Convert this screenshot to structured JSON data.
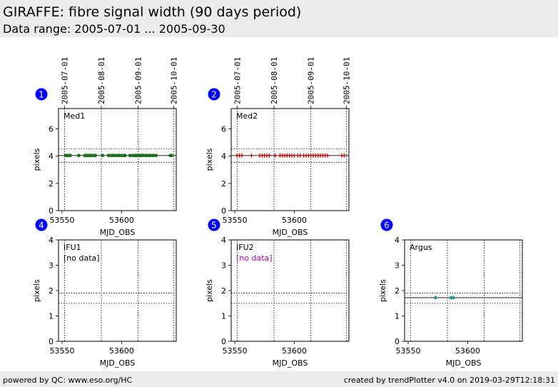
{
  "header": {
    "title": "GIRAFFE: fibre signal width (90 days period)",
    "subtitle": "Data range: 2005-07-01 ... 2005-09-30"
  },
  "footer": {
    "left": "powered by QC: www.eso.org/HC",
    "right": "created by trendPlotter v4.0 on 2019-03-29T12:18:31"
  },
  "colors": {
    "badge": "#0000ff",
    "med1_marker": "#1f6f1f",
    "med2_marker": "#cc0000",
    "argus_marker": "#2a9a9a",
    "no_data_ifu2": "#b000b0"
  },
  "chart_data": [
    {
      "id": 1,
      "label": "Med1",
      "type": "scatter",
      "marker": "circle",
      "color": "#1f6f1f",
      "xlabel": "MJD_OBS",
      "ylabel": "pixels",
      "xlim": [
        53547,
        53646
      ],
      "ylim": [
        0,
        7.5
      ],
      "xticks": [
        53550,
        53600
      ],
      "yticks": [
        0,
        2,
        4,
        6
      ],
      "date_ticks": [
        {
          "label": "2005-07-01",
          "mjd": 53552
        },
        {
          "label": "2005-08-01",
          "mjd": 53583
        },
        {
          "label": "2005-09-01",
          "mjd": 53614
        },
        {
          "label": "2005-10-01",
          "mjd": 53644
        }
      ],
      "hlines": {
        "solid": [
          4.05
        ],
        "dotted": [
          4.55,
          3.55
        ]
      },
      "points": {
        "x": [
          53553,
          53554,
          53555,
          53556,
          53557,
          53564,
          53569,
          53570,
          53571,
          53572,
          53573,
          53574,
          53575,
          53577,
          53578,
          53584,
          53589,
          53590,
          53592,
          53593,
          53595,
          53597,
          53598,
          53600,
          53602,
          53603,
          53607,
          53609,
          53611,
          53612,
          53613,
          53615,
          53616,
          53617,
          53618,
          53620,
          53621,
          53623,
          53624,
          53626,
          53627,
          53629,
          53641,
          53642
        ],
        "y": [
          4.05,
          4.05,
          4.05,
          4.05,
          4.05,
          4.05,
          4.05,
          4.05,
          4.05,
          4.05,
          4.05,
          4.05,
          4.05,
          4.05,
          4.05,
          4.05,
          4.05,
          4.05,
          4.05,
          4.05,
          4.05,
          4.05,
          4.05,
          4.05,
          4.05,
          4.05,
          4.05,
          4.05,
          4.05,
          4.05,
          4.05,
          4.05,
          4.05,
          4.05,
          4.05,
          4.05,
          4.05,
          4.05,
          4.05,
          4.05,
          4.05,
          4.05,
          4.05,
          4.05
        ]
      }
    },
    {
      "id": 2,
      "label": "Med2",
      "type": "scatter",
      "marker": "plus",
      "color": "#cc0000",
      "xlabel": "MJD_OBS",
      "ylabel": "pixels",
      "xlim": [
        53547,
        53646
      ],
      "ylim": [
        0,
        7.5
      ],
      "xticks": [
        53550,
        53600
      ],
      "yticks": [
        0,
        2,
        4,
        6
      ],
      "date_ticks": [
        {
          "label": "2005-07-01",
          "mjd": 53552
        },
        {
          "label": "2005-08-01",
          "mjd": 53583
        },
        {
          "label": "2005-09-01",
          "mjd": 53614
        },
        {
          "label": "2005-10-01",
          "mjd": 53644
        }
      ],
      "hlines": {
        "solid": [
          4.05
        ],
        "dotted": [
          4.55,
          3.55
        ]
      },
      "points": {
        "x": [
          53552,
          53554,
          53556,
          53564,
          53571,
          53573,
          53575,
          53577,
          53579,
          53584,
          53588,
          53590,
          53592,
          53594,
          53596,
          53598,
          53600,
          53603,
          53605,
          53608,
          53610,
          53612,
          53614,
          53616,
          53618,
          53620,
          53622,
          53624,
          53626,
          53628,
          53640,
          53642
        ],
        "y": [
          4.05,
          4.05,
          4.05,
          4.05,
          4.05,
          4.05,
          4.05,
          4.05,
          4.05,
          4.05,
          4.05,
          4.05,
          4.05,
          4.05,
          4.05,
          4.05,
          4.05,
          4.05,
          4.05,
          4.05,
          4.05,
          4.05,
          4.05,
          4.05,
          4.05,
          4.05,
          4.05,
          4.05,
          4.05,
          4.05,
          4.05,
          4.05
        ]
      }
    },
    {
      "id": 4,
      "label": "IFU1",
      "type": "scatter",
      "no_data": "[no data]",
      "no_data_color": "#000000",
      "xlabel": "MJD_OBS",
      "ylabel": "pixels",
      "xlim": [
        53547,
        53646
      ],
      "ylim": [
        0,
        4
      ],
      "xticks": [
        53550,
        53600
      ],
      "yticks": [
        0,
        1,
        2,
        3,
        4
      ],
      "hlines": {
        "solid": [],
        "dotted": [
          1.9,
          1.5
        ]
      },
      "points": {
        "x": [],
        "y": []
      }
    },
    {
      "id": 5,
      "label": "IFU2",
      "type": "scatter",
      "no_data": "[no data]",
      "no_data_color": "#b000b0",
      "xlabel": "MJD_OBS",
      "ylabel": "pixels",
      "xlim": [
        53547,
        53646
      ],
      "ylim": [
        0,
        4
      ],
      "xticks": [
        53550,
        53600
      ],
      "yticks": [
        0,
        1,
        2,
        3,
        4
      ],
      "hlines": {
        "solid": [],
        "dotted": [
          1.9,
          1.5
        ]
      },
      "points": {
        "x": [],
        "y": []
      }
    },
    {
      "id": 6,
      "label": "Argus",
      "type": "scatter",
      "marker": "circle",
      "color": "#2a9a9a",
      "xlabel": "MJD_OBS",
      "ylabel": "pixels",
      "xlim": [
        53547,
        53646
      ],
      "ylim": [
        0,
        4
      ],
      "xticks": [
        53550,
        53600
      ],
      "yticks": [
        0,
        1,
        2,
        3,
        4
      ],
      "hlines": {
        "solid": [
          1.72
        ],
        "dotted": [
          1.9,
          1.5
        ]
      },
      "points": {
        "x": [
          53573,
          53586,
          53588
        ],
        "y": [
          1.72,
          1.72,
          1.72
        ]
      }
    }
  ]
}
